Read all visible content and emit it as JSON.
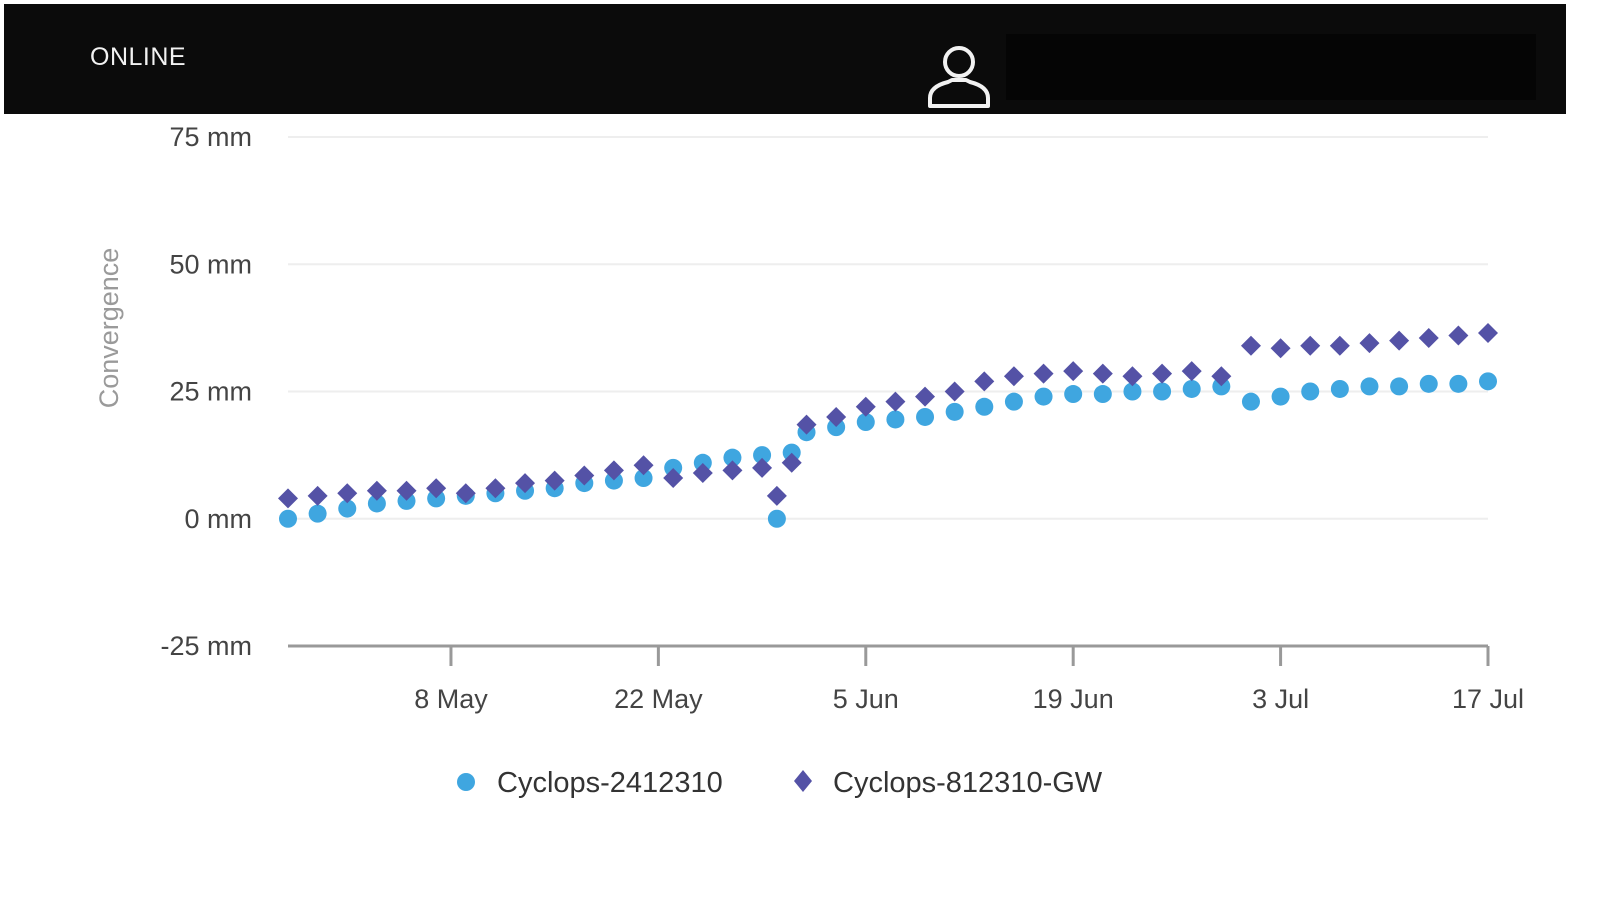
{
  "header": {
    "status_label": "ONLINE",
    "user_icon": "user-icon"
  },
  "colors": {
    "series_a": "#3fa6e0",
    "series_b": "#5452a6",
    "header_bg": "#0b0b0b",
    "grid": "#eeeeee",
    "axis": "#999999"
  },
  "chart_data": {
    "type": "scatter",
    "ylabel": "Convergence",
    "xlabel": "",
    "title": "",
    "y_unit": "mm",
    "ylim": [
      -25,
      75
    ],
    "yticks": [
      -25,
      0,
      25,
      50,
      75
    ],
    "xlim": [
      "2021-04-27",
      "2021-07-17"
    ],
    "xticks": [
      {
        "date": "2021-05-08",
        "label": "8 May"
      },
      {
        "date": "2021-05-22",
        "label": "22 May"
      },
      {
        "date": "2021-06-05",
        "label": "5 Jun"
      },
      {
        "date": "2021-06-19",
        "label": "19 Jun"
      },
      {
        "date": "2021-07-03",
        "label": "3 Jul"
      },
      {
        "date": "2021-07-17",
        "label": "17 Jul"
      }
    ],
    "grid": true,
    "legend_position": "bottom-center",
    "series": [
      {
        "name": "Cyclops-2412310",
        "marker": "circle",
        "points": [
          [
            "2021-04-27",
            0
          ],
          [
            "2021-04-29",
            1
          ],
          [
            "2021-05-01",
            2
          ],
          [
            "2021-05-03",
            3
          ],
          [
            "2021-05-05",
            3.5
          ],
          [
            "2021-05-07",
            4
          ],
          [
            "2021-05-09",
            4.5
          ],
          [
            "2021-05-11",
            5
          ],
          [
            "2021-05-13",
            5.5
          ],
          [
            "2021-05-15",
            6
          ],
          [
            "2021-05-17",
            7
          ],
          [
            "2021-05-19",
            7.5
          ],
          [
            "2021-05-21",
            8
          ],
          [
            "2021-05-23",
            10
          ],
          [
            "2021-05-25",
            11
          ],
          [
            "2021-05-27",
            12
          ],
          [
            "2021-05-29",
            12.5
          ],
          [
            "2021-05-31",
            13
          ],
          [
            "2021-06-01",
            17
          ],
          [
            "2021-05-30",
            0
          ],
          [
            "2021-06-03",
            18
          ],
          [
            "2021-06-05",
            19
          ],
          [
            "2021-06-07",
            19.5
          ],
          [
            "2021-06-09",
            20
          ],
          [
            "2021-06-11",
            21
          ],
          [
            "2021-06-13",
            22
          ],
          [
            "2021-06-15",
            23
          ],
          [
            "2021-06-17",
            24
          ],
          [
            "2021-06-19",
            24.5
          ],
          [
            "2021-06-21",
            24.5
          ],
          [
            "2021-06-23",
            25
          ],
          [
            "2021-06-25",
            25
          ],
          [
            "2021-06-27",
            25.5
          ],
          [
            "2021-06-29",
            26
          ],
          [
            "2021-07-01",
            23
          ],
          [
            "2021-07-03",
            24
          ],
          [
            "2021-07-05",
            25
          ],
          [
            "2021-07-07",
            25.5
          ],
          [
            "2021-07-09",
            26
          ],
          [
            "2021-07-11",
            26
          ],
          [
            "2021-07-13",
            26.5
          ],
          [
            "2021-07-15",
            26.5
          ],
          [
            "2021-07-17",
            27
          ]
        ]
      },
      {
        "name": "Cyclops-812310-GW",
        "marker": "diamond",
        "points": [
          [
            "2021-04-27",
            4
          ],
          [
            "2021-04-29",
            4.5
          ],
          [
            "2021-05-01",
            5
          ],
          [
            "2021-05-03",
            5.5
          ],
          [
            "2021-05-05",
            5.5
          ],
          [
            "2021-05-07",
            6
          ],
          [
            "2021-05-09",
            5
          ],
          [
            "2021-05-11",
            6
          ],
          [
            "2021-05-13",
            7
          ],
          [
            "2021-05-15",
            7.5
          ],
          [
            "2021-05-17",
            8.5
          ],
          [
            "2021-05-19",
            9.5
          ],
          [
            "2021-05-21",
            10.5
          ],
          [
            "2021-05-23",
            8
          ],
          [
            "2021-05-25",
            9
          ],
          [
            "2021-05-27",
            9.5
          ],
          [
            "2021-05-29",
            10
          ],
          [
            "2021-05-31",
            11
          ],
          [
            "2021-06-01",
            18.5
          ],
          [
            "2021-05-30",
            4.5
          ],
          [
            "2021-06-03",
            20
          ],
          [
            "2021-06-05",
            22
          ],
          [
            "2021-06-07",
            23
          ],
          [
            "2021-06-09",
            24
          ],
          [
            "2021-06-11",
            25
          ],
          [
            "2021-06-13",
            27
          ],
          [
            "2021-06-15",
            28
          ],
          [
            "2021-06-17",
            28.5
          ],
          [
            "2021-06-19",
            29
          ],
          [
            "2021-06-21",
            28.5
          ],
          [
            "2021-06-23",
            28
          ],
          [
            "2021-06-25",
            28.5
          ],
          [
            "2021-06-27",
            29
          ],
          [
            "2021-06-29",
            28
          ],
          [
            "2021-07-01",
            34
          ],
          [
            "2021-07-03",
            33.5
          ],
          [
            "2021-07-05",
            34
          ],
          [
            "2021-07-07",
            34
          ],
          [
            "2021-07-09",
            34.5
          ],
          [
            "2021-07-11",
            35
          ],
          [
            "2021-07-13",
            35.5
          ],
          [
            "2021-07-15",
            36
          ],
          [
            "2021-07-17",
            36.5
          ]
        ]
      }
    ]
  }
}
